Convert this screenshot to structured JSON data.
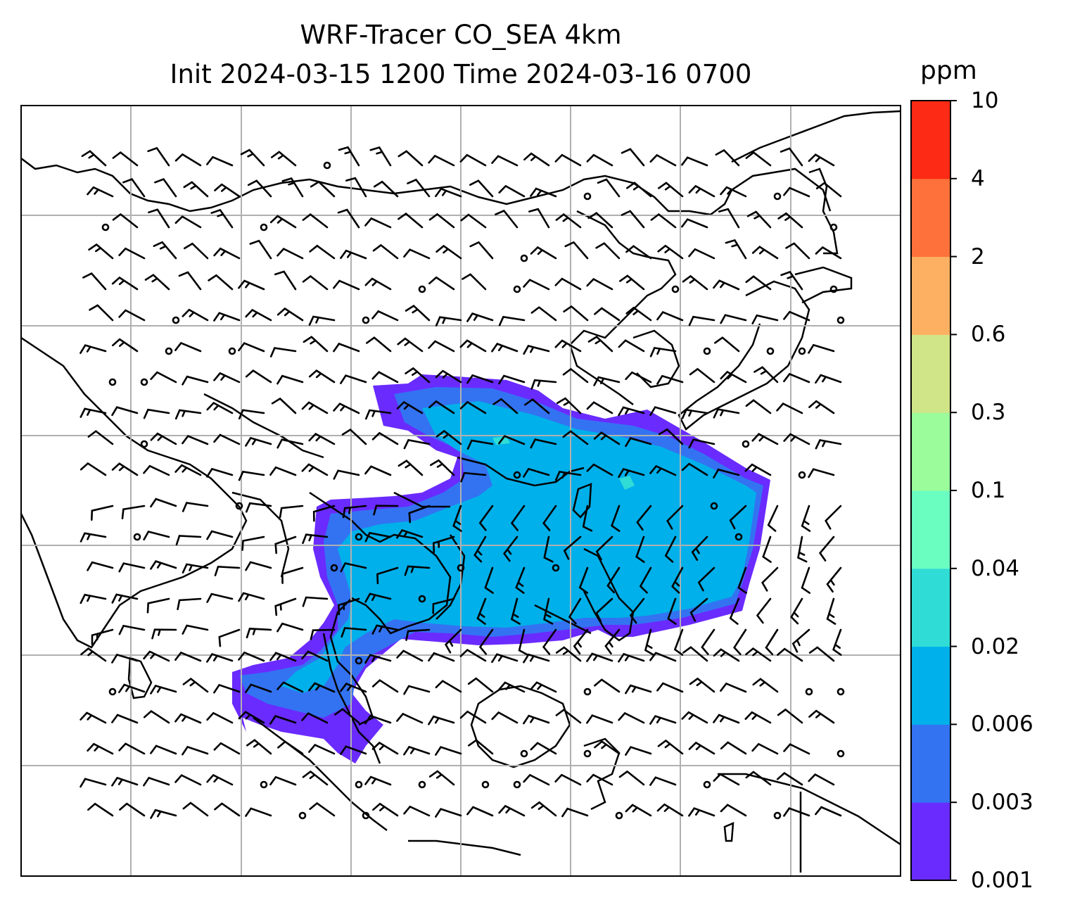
{
  "title": {
    "line1": "WRF-Tracer CO_SEA 4km",
    "line2": "Init 2024-03-15 1200 Time 2024-03-16 0700"
  },
  "colorbar": {
    "unit": "ppm",
    "levels": [
      "0.001",
      "0.003",
      "0.006",
      "0.02",
      "0.04",
      "0.1",
      "0.3",
      "0.6",
      "2",
      "4",
      "10"
    ],
    "colors": [
      "#6a2bff",
      "#3373f2",
      "#00b0ea",
      "#30dcd6",
      "#6afec1",
      "#9afc9a",
      "#d0e488",
      "#feb062",
      "#ff713a",
      "#fd2a15"
    ]
  },
  "map": {
    "grid": true,
    "field_colors": [
      "#6a2bff",
      "#3373f2",
      "#00b0ea"
    ],
    "coastline_color": "#000000",
    "barb_color": "#000000"
  }
}
